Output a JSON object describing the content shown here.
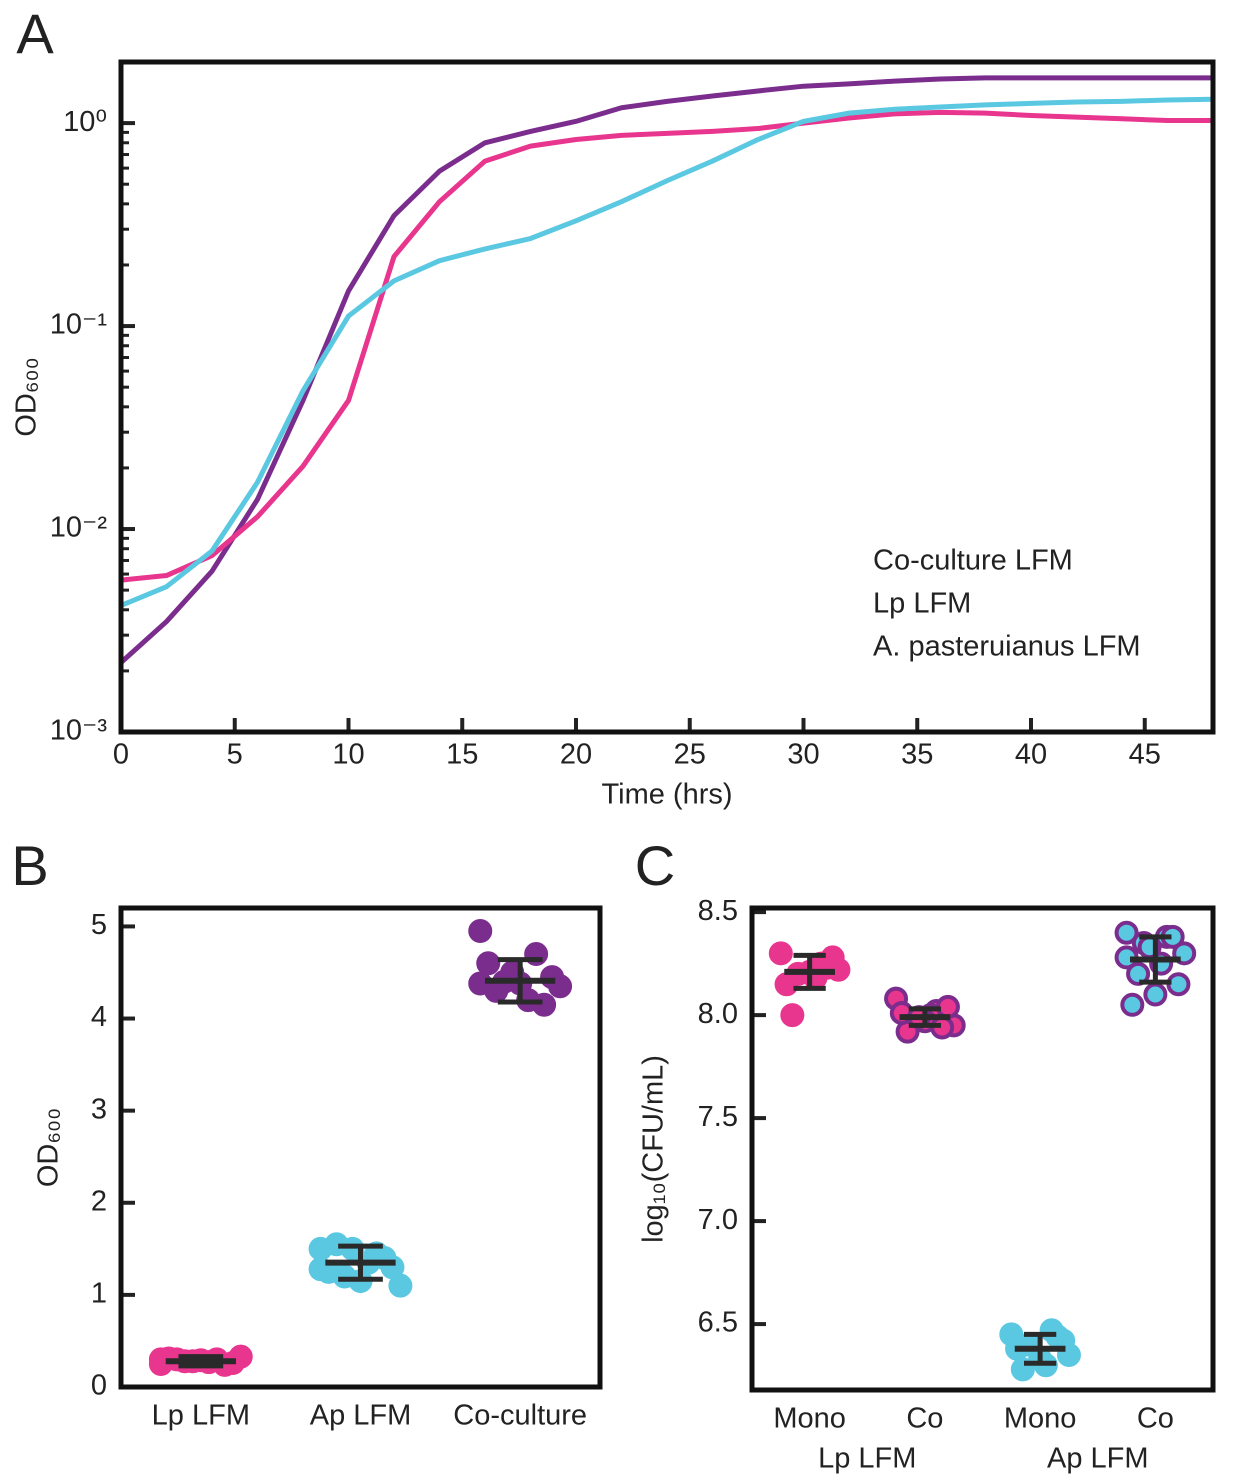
{
  "chart_data": [
    {
      "type": "line",
      "panel_label": "A",
      "xlabel": "Time (hrs)",
      "ylabel": "OD₆₀₀",
      "log_y": true,
      "legend": "lower right",
      "x": [
        0,
        2,
        4,
        6,
        8,
        10,
        12,
        14,
        16,
        18,
        20,
        22,
        24,
        26,
        28,
        30,
        32,
        34,
        36,
        38,
        40,
        42,
        44,
        46,
        48
      ],
      "series": [
        {
          "name": "Co-culture LFM",
          "color": "#7b2d8e",
          "values": [
            0.0022,
            0.0035,
            0.0062,
            0.014,
            0.043,
            0.149,
            0.35,
            0.58,
            0.8,
            0.91,
            1.02,
            1.19,
            1.28,
            1.36,
            1.44,
            1.52,
            1.56,
            1.61,
            1.65,
            1.67,
            1.67,
            1.67,
            1.67,
            1.67,
            1.67
          ]
        },
        {
          "name": "Lp LFM",
          "color": "#e8358e",
          "values": [
            0.0056,
            0.0059,
            0.0074,
            0.0115,
            0.0204,
            0.043,
            0.22,
            0.41,
            0.65,
            0.77,
            0.83,
            0.87,
            0.89,
            0.91,
            0.94,
            1.0,
            1.06,
            1.11,
            1.13,
            1.12,
            1.09,
            1.07,
            1.05,
            1.03,
            1.03
          ]
        },
        {
          "name": "A. pasteruianus LFM",
          "color": "#5bc8e2",
          "values": [
            0.0042,
            0.0052,
            0.0078,
            0.017,
            0.048,
            0.112,
            0.167,
            0.21,
            0.24,
            0.27,
            0.33,
            0.41,
            0.52,
            0.65,
            0.83,
            1.02,
            1.12,
            1.17,
            1.2,
            1.23,
            1.25,
            1.27,
            1.28,
            1.3,
            1.31
          ]
        }
      ],
      "xlim": [
        0,
        48
      ],
      "xticks": [
        0,
        5,
        10,
        15,
        20,
        25,
        30,
        35,
        40,
        45
      ],
      "ylim": [
        0.001,
        2
      ],
      "yticks": [
        {
          "value": 0.001,
          "label": "10⁻³"
        },
        {
          "value": 0.01,
          "label": "10⁻²"
        },
        {
          "value": 0.1,
          "label": "10⁻¹"
        },
        {
          "value": 1,
          "label": "10⁰"
        }
      ]
    },
    {
      "type": "strip",
      "panel_label": "B",
      "ylabel": "OD₆₀₀",
      "categories": [
        "Lp LFM",
        "Ap LFM",
        "Co-culture"
      ],
      "colors": [
        "#e8358e",
        "#5bc8e2",
        "#7b2d8e"
      ],
      "edge_colors": [
        "#e8358e",
        "#5bc8e2",
        "#7b2d8e"
      ],
      "points": [
        [
          0.25,
          0.3,
          0.28,
          0.33,
          0.27,
          0.3,
          0.26,
          0.29,
          0.31,
          0.24,
          0.28,
          0.3
        ],
        [
          1.5,
          1.45,
          1.2,
          1.1,
          1.35,
          1.55,
          1.3,
          1.15,
          1.25,
          1.4,
          1.5,
          1.28
        ],
        [
          4.95,
          4.7,
          4.4,
          4.35,
          4.2,
          4.3,
          4.45,
          4.38,
          4.6,
          4.15,
          4.5,
          4.38
        ]
      ],
      "means": [
        0.28,
        1.35,
        4.41
      ],
      "sds": [
        0.05,
        0.18,
        0.23
      ],
      "ylim": [
        0,
        5.2
      ],
      "yticks": [
        0,
        1,
        2,
        3,
        4,
        5
      ]
    },
    {
      "type": "strip",
      "panel_label": "C",
      "ylabel": "log₁₀(CFU/mL)",
      "categories": [
        "Mono",
        "Co",
        "Mono",
        "Co"
      ],
      "colors": [
        "#e8358e",
        "#e8358e",
        "#5bc8e2",
        "#5bc8e2"
      ],
      "edge_colors": [
        "#e8358e",
        "#7b2d8e",
        "#5bc8e2",
        "#7b2d8e"
      ],
      "groups": [
        {
          "label": "Lp LFM",
          "color": "#e8358e"
        },
        {
          "label": "Ap LFM",
          "color": "#5bc8e2"
        }
      ],
      "points": [
        [
          8.3,
          8.25,
          8.2,
          8.22,
          8.18,
          8.0,
          8.28,
          8.21,
          8.15,
          8.23
        ],
        [
          8.08,
          8.02,
          7.98,
          7.95,
          8.0,
          7.92,
          8.04,
          7.97,
          8.01,
          7.94,
          7.99
        ],
        [
          6.45,
          6.47,
          6.4,
          6.35,
          6.3,
          6.28,
          6.42,
          6.33,
          6.38,
          6.44
        ],
        [
          8.4,
          8.38,
          8.35,
          8.3,
          8.25,
          8.2,
          8.15,
          8.1,
          8.05,
          8.38,
          8.33,
          8.28
        ]
      ],
      "means": [
        8.21,
        7.99,
        6.38,
        8.27
      ],
      "sds": [
        0.08,
        0.04,
        0.07,
        0.11
      ],
      "ylim": [
        6.18,
        8.52
      ],
      "yticks": [
        6.5,
        {
          "value": 7,
          "label": "7.0"
        },
        7.5,
        {
          "value": 8,
          "label": "8.0"
        },
        8.5
      ]
    }
  ]
}
